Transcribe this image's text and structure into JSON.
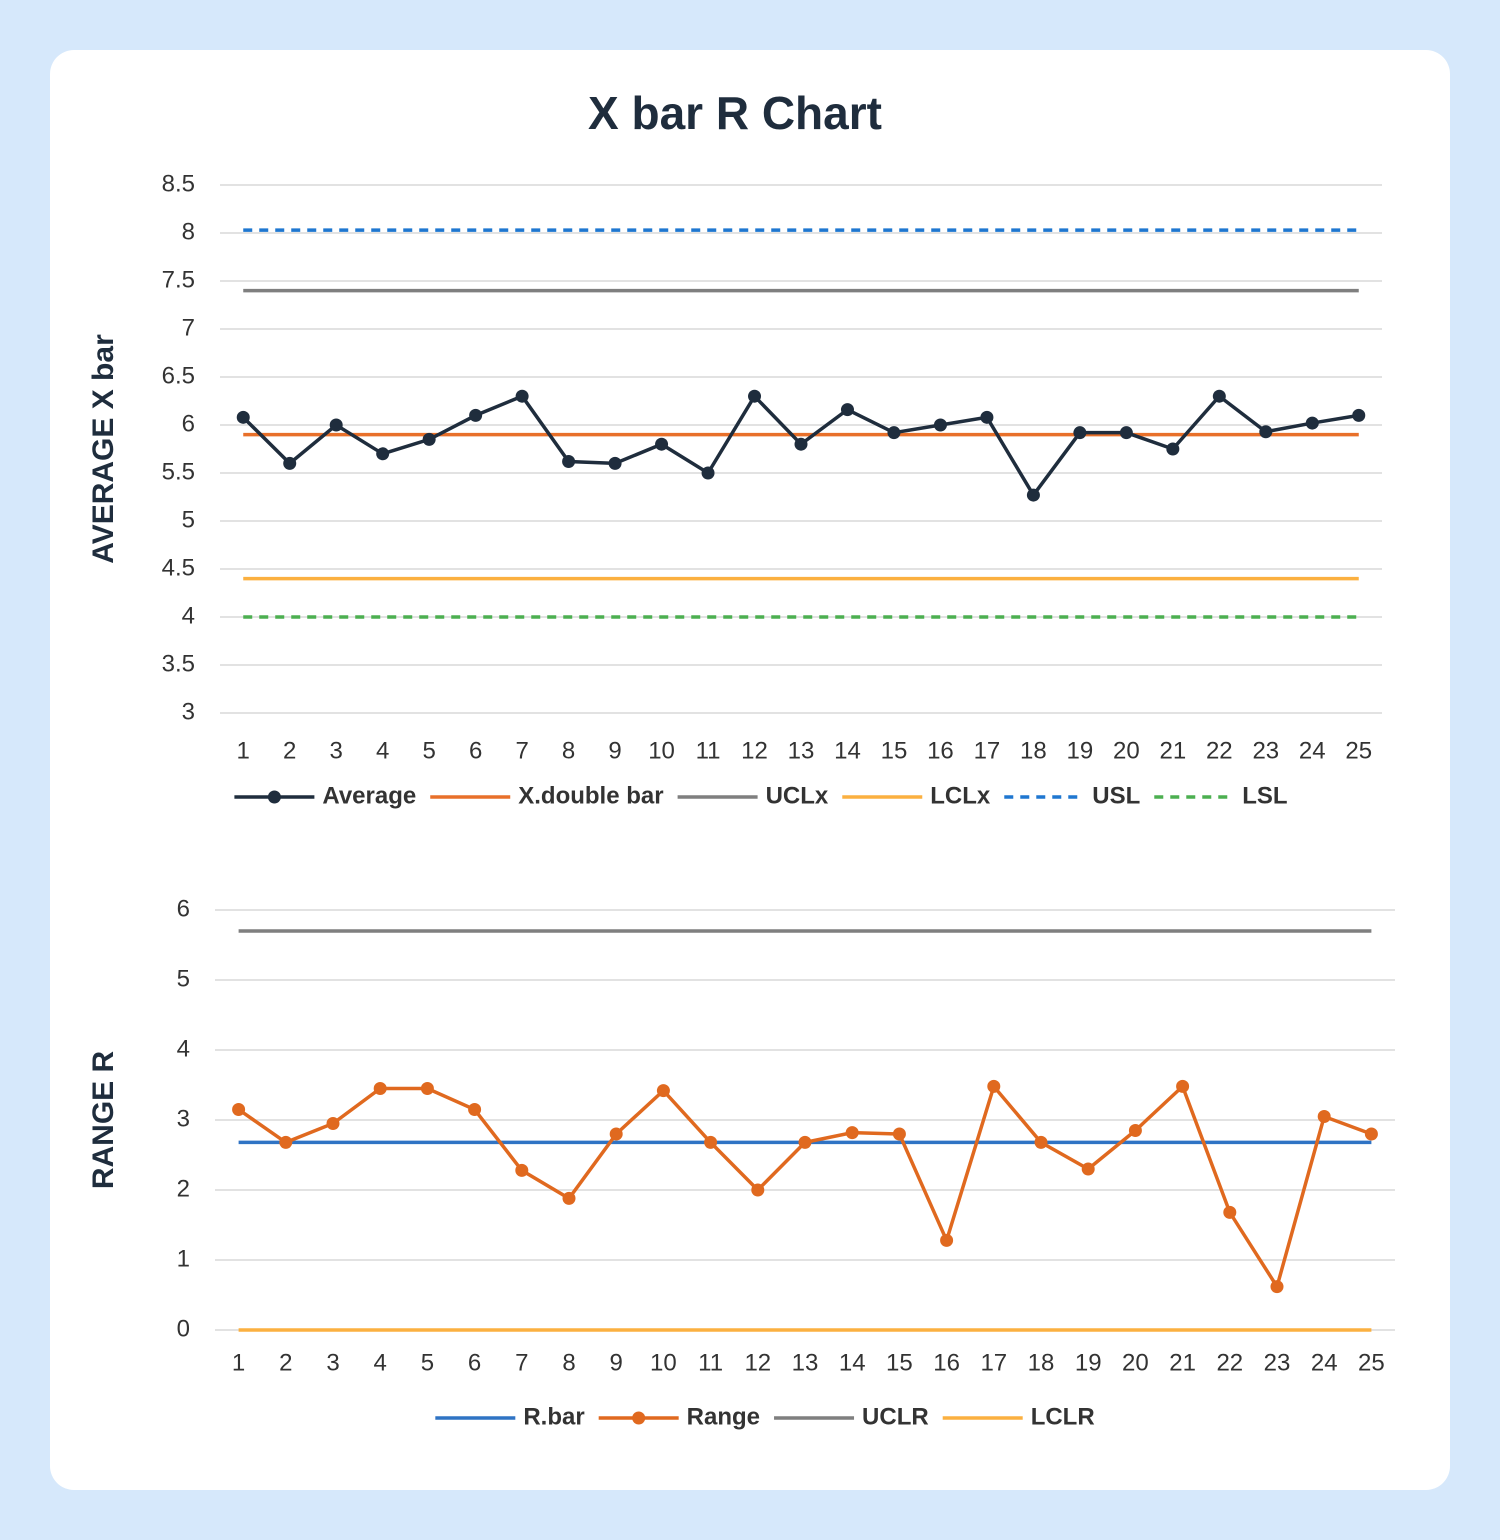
{
  "title": "X bar R Chart",
  "chart_data": [
    {
      "type": "line",
      "y_label": "AVERAGE X bar",
      "categories": [
        "1",
        "2",
        "3",
        "4",
        "5",
        "6",
        "7",
        "8",
        "9",
        "10",
        "11",
        "12",
        "13",
        "14",
        "15",
        "16",
        "17",
        "18",
        "19",
        "20",
        "21",
        "22",
        "23",
        "24",
        "25"
      ],
      "ylim": [
        3,
        8.5
      ],
      "yticks": [
        3,
        3.5,
        4,
        4.5,
        5,
        5.5,
        6,
        6.5,
        7,
        7.5,
        8,
        8.5
      ],
      "grid": true,
      "series": [
        {
          "name": "Average",
          "color": "#1f2d3d",
          "marker": true,
          "values": [
            6.08,
            5.6,
            6.0,
            5.7,
            5.85,
            6.1,
            6.3,
            5.62,
            5.6,
            5.8,
            5.5,
            6.3,
            5.8,
            6.16,
            5.92,
            6.0,
            6.08,
            5.27,
            5.92,
            5.92,
            5.75,
            6.3,
            5.93,
            6.02,
            6.1
          ]
        },
        {
          "name": "X.double bar",
          "color": "#e8702a",
          "values": [
            5.9,
            5.9,
            5.9,
            5.9,
            5.9,
            5.9,
            5.9,
            5.9,
            5.9,
            5.9,
            5.9,
            5.9,
            5.9,
            5.9,
            5.9,
            5.9,
            5.9,
            5.9,
            5.9,
            5.9,
            5.9,
            5.9,
            5.9,
            5.9,
            5.9
          ]
        },
        {
          "name": "UCLx",
          "color": "#7f7f7f",
          "values": [
            7.4,
            7.4,
            7.4,
            7.4,
            7.4,
            7.4,
            7.4,
            7.4,
            7.4,
            7.4,
            7.4,
            7.4,
            7.4,
            7.4,
            7.4,
            7.4,
            7.4,
            7.4,
            7.4,
            7.4,
            7.4,
            7.4,
            7.4,
            7.4,
            7.4
          ]
        },
        {
          "name": "LCLx",
          "color": "#fbb040",
          "values": [
            4.4,
            4.4,
            4.4,
            4.4,
            4.4,
            4.4,
            4.4,
            4.4,
            4.4,
            4.4,
            4.4,
            4.4,
            4.4,
            4.4,
            4.4,
            4.4,
            4.4,
            4.4,
            4.4,
            4.4,
            4.4,
            4.4,
            4.4,
            4.4,
            4.4
          ]
        },
        {
          "name": "USL",
          "color": "#1f77d0",
          "dashed": true,
          "values": [
            8.03,
            8.03,
            8.03,
            8.03,
            8.03,
            8.03,
            8.03,
            8.03,
            8.03,
            8.03,
            8.03,
            8.03,
            8.03,
            8.03,
            8.03,
            8.03,
            8.03,
            8.03,
            8.03,
            8.03,
            8.03,
            8.03,
            8.03,
            8.03,
            8.03
          ]
        },
        {
          "name": "LSL",
          "color": "#4caf50",
          "dashed": true,
          "values": [
            4,
            4,
            4,
            4,
            4,
            4,
            4,
            4,
            4,
            4,
            4,
            4,
            4,
            4,
            4,
            4,
            4,
            4,
            4,
            4,
            4,
            4,
            4,
            4,
            4
          ]
        }
      ]
    },
    {
      "type": "line",
      "y_label": "RANGE R",
      "categories": [
        "1",
        "2",
        "3",
        "4",
        "5",
        "6",
        "7",
        "8",
        "9",
        "10",
        "11",
        "12",
        "13",
        "14",
        "15",
        "16",
        "17",
        "18",
        "19",
        "20",
        "21",
        "22",
        "23",
        "24",
        "25"
      ],
      "ylim": [
        0,
        6
      ],
      "yticks": [
        0,
        1,
        2,
        3,
        4,
        5,
        6
      ],
      "grid": true,
      "series": [
        {
          "name": "R.bar",
          "color": "#2f73c4",
          "values": [
            2.68,
            2.68,
            2.68,
            2.68,
            2.68,
            2.68,
            2.68,
            2.68,
            2.68,
            2.68,
            2.68,
            2.68,
            2.68,
            2.68,
            2.68,
            2.68,
            2.68,
            2.68,
            2.68,
            2.68,
            2.68,
            2.68,
            2.68,
            2.68,
            2.68
          ]
        },
        {
          "name": "Range",
          "color": "#e0691f",
          "marker": true,
          "values": [
            3.15,
            2.68,
            2.95,
            3.45,
            3.45,
            3.15,
            2.28,
            1.88,
            2.8,
            3.42,
            2.68,
            2.0,
            2.68,
            2.82,
            2.8,
            1.28,
            3.48,
            2.68,
            2.3,
            2.85,
            3.48,
            1.68,
            0.62,
            3.05,
            2.8
          ]
        },
        {
          "name": "UCLR",
          "color": "#7f7f7f",
          "values": [
            5.7,
            5.7,
            5.7,
            5.7,
            5.7,
            5.7,
            5.7,
            5.7,
            5.7,
            5.7,
            5.7,
            5.7,
            5.7,
            5.7,
            5.7,
            5.7,
            5.7,
            5.7,
            5.7,
            5.7,
            5.7,
            5.7,
            5.7,
            5.7,
            5.7
          ]
        },
        {
          "name": "LCLR",
          "color": "#fbb040",
          "values": [
            0,
            0,
            0,
            0,
            0,
            0,
            0,
            0,
            0,
            0,
            0,
            0,
            0,
            0,
            0,
            0,
            0,
            0,
            0,
            0,
            0,
            0,
            0,
            0,
            0
          ]
        }
      ]
    }
  ]
}
